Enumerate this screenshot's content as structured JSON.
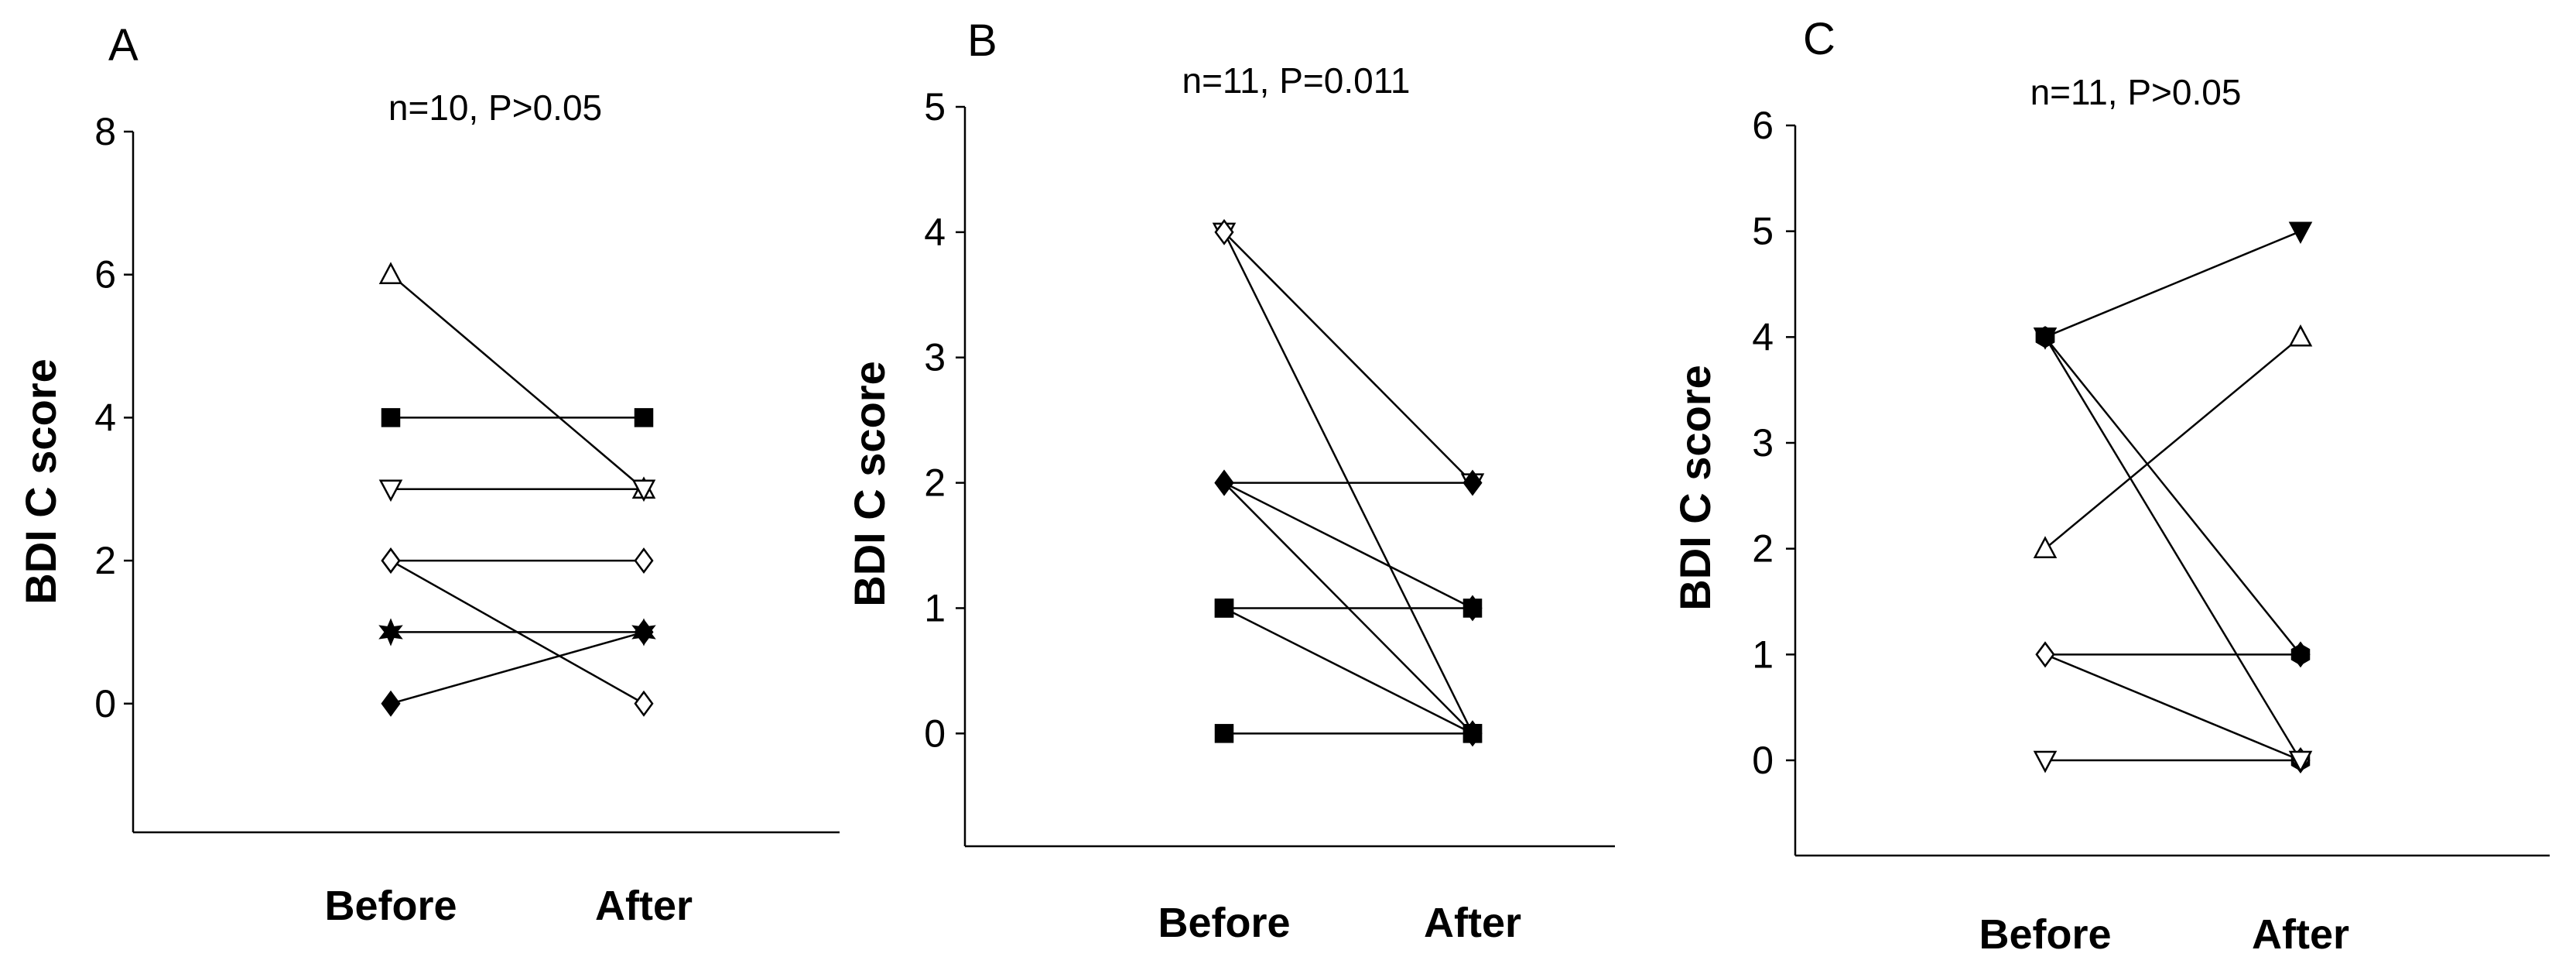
{
  "chart_data": [
    {
      "type": "line",
      "panel_label": "A",
      "title": "n=10, P>0.05",
      "ylabel": "BDI C score",
      "xlabel": "",
      "categories": [
        "Before",
        "After"
      ],
      "yticks": [
        "0",
        "2",
        "4",
        "6",
        "8"
      ],
      "ylim": [
        -1.8,
        8
      ],
      "grid": false,
      "series": [
        {
          "values": [
            6,
            3
          ],
          "marker": "triangle-up-open"
        },
        {
          "values": [
            4,
            4
          ],
          "marker": "square-filled"
        },
        {
          "values": [
            3,
            3
          ],
          "marker": "triangle-down-open"
        },
        {
          "values": [
            2,
            2
          ],
          "marker": "diamond-open"
        },
        {
          "values": [
            2,
            0
          ],
          "marker": "diamond-open"
        },
        {
          "values": [
            1,
            1
          ],
          "marker": "star-filled"
        },
        {
          "values": [
            0,
            1
          ],
          "marker": "diamond-filled"
        }
      ]
    },
    {
      "type": "line",
      "panel_label": "B",
      "title": "n=11, P=0.011",
      "ylabel": "BDI C score",
      "xlabel": "",
      "categories": [
        "Before",
        "After"
      ],
      "yticks": [
        "0",
        "1",
        "2",
        "3",
        "4",
        "5"
      ],
      "ylim": [
        -0.9,
        5
      ],
      "grid": false,
      "series": [
        {
          "values": [
            4,
            2
          ],
          "marker": "triangle-down-open"
        },
        {
          "values": [
            4,
            0
          ],
          "marker": "diamond-open"
        },
        {
          "values": [
            2,
            2
          ],
          "marker": "diamond-filled"
        },
        {
          "values": [
            2,
            1
          ],
          "marker": "diamond-filled"
        },
        {
          "values": [
            2,
            0
          ],
          "marker": "diamond-filled"
        },
        {
          "values": [
            1,
            1
          ],
          "marker": "square-filled"
        },
        {
          "values": [
            1,
            0
          ],
          "marker": "square-filled"
        },
        {
          "values": [
            0,
            0
          ],
          "marker": "square-filled"
        }
      ]
    },
    {
      "type": "line",
      "panel_label": "C",
      "title": "n=11, P>0.05",
      "ylabel": "BDI C score",
      "xlabel": "",
      "categories": [
        "Before",
        "After"
      ],
      "yticks": [
        "0",
        "1",
        "2",
        "3",
        "4",
        "5",
        "6"
      ],
      "ylim": [
        -0.9,
        6
      ],
      "grid": false,
      "series": [
        {
          "values": [
            4,
            5
          ],
          "marker": "triangle-down-filled"
        },
        {
          "values": [
            2,
            4
          ],
          "marker": "triangle-up-open"
        },
        {
          "values": [
            4,
            1
          ],
          "marker": "hexagon-filled"
        },
        {
          "values": [
            4,
            0
          ],
          "marker": "hexagon-filled"
        },
        {
          "values": [
            1,
            1
          ],
          "marker": "diamond-filled"
        },
        {
          "values": [
            1,
            0
          ],
          "marker": "diamond-open"
        },
        {
          "values": [
            0,
            0
          ],
          "marker": "triangle-down-open"
        }
      ]
    }
  ]
}
